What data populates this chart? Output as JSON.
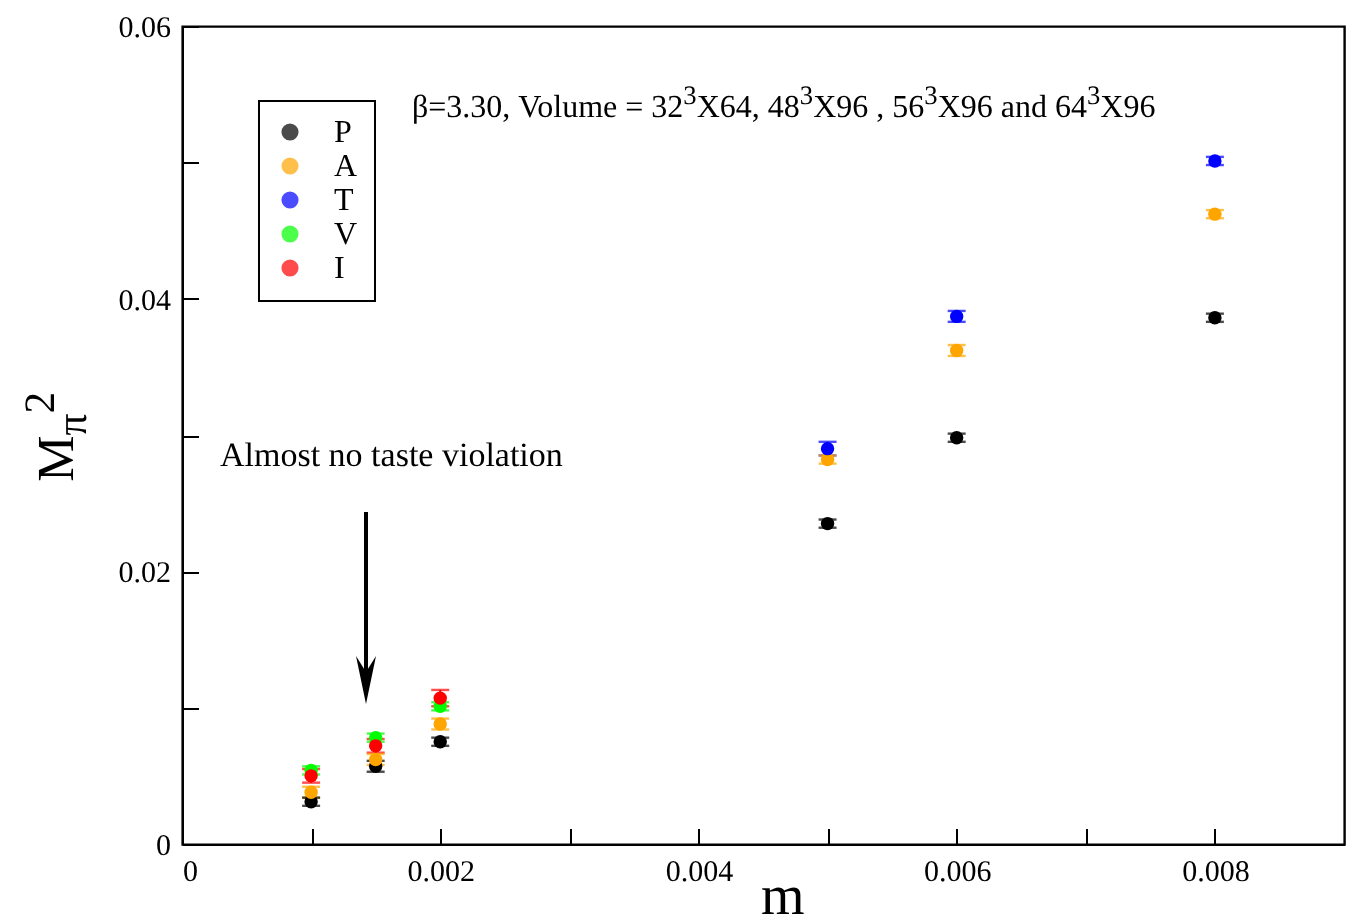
{
  "chart_data": {
    "type": "scatter",
    "subtitle": "β=3.30, Volume = 32$^{3}$X64, 48$^{3}$X96 , 56$^{3}$X96 and 64$^{3}$X96",
    "xlabel": "m",
    "ylabel": "M$_{π}$$^{2}$",
    "x": [
      0.001,
      0.0015,
      0.002,
      0.005,
      0.006,
      0.008
    ],
    "series": [
      {
        "name": "P",
        "color": "#000000",
        "values": [
          0.0031,
          0.0057,
          0.0075,
          0.0235,
          0.0298,
          0.0386
        ],
        "errors": [
          0.0003,
          0.0004,
          0.0003,
          0.0003,
          0.0003,
          0.0003
        ]
      },
      {
        "name": "A",
        "color": "#ffa500",
        "values": [
          0.0038,
          0.0062,
          0.0088,
          0.0282,
          0.0362,
          0.0462
        ],
        "errors": [
          0.0004,
          0.0004,
          0.0004,
          0.0003,
          0.0004,
          0.0003
        ]
      },
      {
        "name": "T",
        "color": "#0000ff",
        "values": [
          null,
          null,
          null,
          0.029,
          0.0387,
          0.0501
        ],
        "errors": [
          null,
          null,
          null,
          0.0005,
          0.0004,
          0.0003
        ]
      },
      {
        "name": "V",
        "color": "#00ff00",
        "values": [
          0.0054,
          0.0078,
          0.0101,
          null,
          null,
          null
        ],
        "errors": [
          0.0003,
          0.0003,
          0.0003,
          null,
          null,
          null
        ]
      },
      {
        "name": "I",
        "color": "#ff0000",
        "values": [
          0.005,
          0.0072,
          0.0107,
          null,
          null,
          null
        ],
        "errors": [
          0.0005,
          0.0005,
          0.0006,
          null,
          null,
          null
        ]
      }
    ],
    "annotations": [
      "Almost no taste violation"
    ],
    "xlim": [
      0,
      0.009
    ],
    "xticks": [
      0,
      {
        "value": 0.001,
        "label": null
      },
      0.002,
      {
        "value": 0.003,
        "label": null
      },
      0.004,
      {
        "value": 0.005,
        "label": null
      },
      0.006,
      {
        "value": 0.007,
        "label": null
      },
      0.008
    ],
    "ylim": [
      0,
      0.06
    ],
    "yticks": [
      0,
      {
        "value": 0.01,
        "label": null
      },
      0.02,
      {
        "value": 0.03,
        "label": null
      },
      0.04,
      {
        "value": 0.05,
        "label": null
      },
      0.06
    ],
    "legend": "top left",
    "marker": "circle",
    "grid": false
  }
}
